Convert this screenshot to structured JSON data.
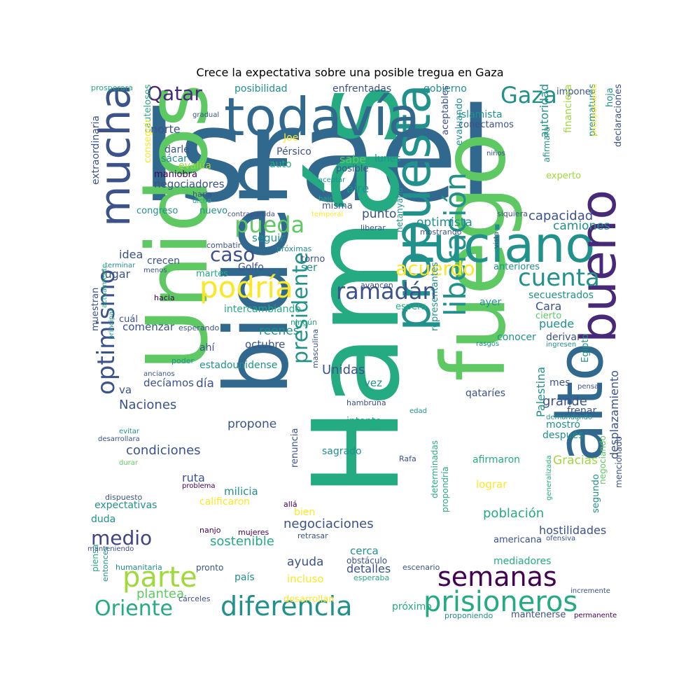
{
  "title": "Crece la expectativa sobre una posible tregua en Gaza",
  "colors": {
    "darkblue": "#3b528b",
    "blue": "#31688e",
    "teal": "#21918c",
    "seagreen": "#25ab82",
    "green": "#5ec962",
    "lime": "#9fda3a",
    "yellow": "#fde725",
    "purple": "#482878",
    "darkpurple": "#440154",
    "slate": "#414487"
  },
  "words": [
    {
      "t": "Israel",
      "c": "blue"
    },
    {
      "t": "Hamás",
      "c": "seagreen"
    },
    {
      "t": "Unidos",
      "c": "green"
    },
    {
      "t": "biden",
      "c": "blue"
    },
    {
      "t": "fuego",
      "c": "green"
    },
    {
      "t": "propuesta",
      "c": "teal"
    },
    {
      "t": "todavía",
      "c": "blue"
    },
    {
      "t": "Luciano",
      "c": "teal"
    },
    {
      "t": "alto",
      "c": "blue"
    },
    {
      "t": "bueno",
      "c": "purple"
    },
    {
      "t": "mucha",
      "c": "darkblue"
    },
    {
      "t": "liberación",
      "c": "teal"
    },
    {
      "t": "podría",
      "c": "yellow"
    },
    {
      "t": "prisioneros",
      "c": "seagreen"
    },
    {
      "t": "semanas",
      "c": "darkpurple"
    },
    {
      "t": "diferencia",
      "c": "teal"
    },
    {
      "t": "parte",
      "c": "lime"
    },
    {
      "t": "Oriente",
      "c": "seagreen"
    },
    {
      "t": "medio",
      "c": "slate"
    },
    {
      "t": "optimismo",
      "c": "darkblue"
    },
    {
      "t": "presidente",
      "c": "teal"
    },
    {
      "t": "ramadán",
      "c": "darkblue"
    },
    {
      "t": "cuenta",
      "c": "teal"
    },
    {
      "t": "acuerdo",
      "c": "yellow"
    },
    {
      "t": "pueda",
      "c": "green"
    },
    {
      "t": "caso",
      "c": "darkblue"
    },
    {
      "t": "Gaza",
      "c": "teal"
    },
    {
      "t": "Qatar",
      "c": "purple"
    },
    {
      "t": "Naciones",
      "c": "darkblue"
    },
    {
      "t": "Unidas",
      "c": "darkblue"
    },
    {
      "t": "condiciones",
      "c": "darkblue"
    },
    {
      "t": "plantea",
      "c": "green"
    },
    {
      "t": "negociaciones",
      "c": "darkblue"
    },
    {
      "t": "sostenible",
      "c": "seagreen"
    },
    {
      "t": "población",
      "c": "seagreen"
    },
    {
      "t": "hostilidades",
      "c": "darkblue"
    },
    {
      "t": "desplazamiento",
      "c": "darkblue"
    },
    {
      "t": "Palestina",
      "c": "teal"
    },
    {
      "t": "capacidad",
      "c": "darkblue"
    },
    {
      "t": "camiones",
      "c": "teal"
    },
    {
      "t": "optimista",
      "c": "teal"
    },
    {
      "t": "autoridad",
      "c": "teal"
    },
    {
      "t": "grande",
      "c": "darkblue"
    },
    {
      "t": "Gracias",
      "c": "lime"
    },
    {
      "t": "mediadores",
      "c": "seagreen"
    },
    {
      "t": "expectativas",
      "c": "teal"
    },
    {
      "t": "ruta",
      "c": "darkblue"
    },
    {
      "t": "milicia",
      "c": "teal"
    },
    {
      "t": "ayuda",
      "c": "darkblue"
    },
    {
      "t": "detalles",
      "c": "darkblue"
    },
    {
      "t": "incluso",
      "c": "yellow"
    },
    {
      "t": "cerca",
      "c": "teal"
    },
    {
      "t": "propone",
      "c": "darkblue"
    },
    {
      "t": "intento",
      "c": "seagreen"
    },
    {
      "t": "sagrado",
      "c": "teal"
    },
    {
      "t": "reenes",
      "c": "teal"
    },
    {
      "t": "octubre",
      "c": "darkblue"
    },
    {
      "t": "estadounidense",
      "c": "teal"
    },
    {
      "t": "intercambiando",
      "c": "seagreen"
    },
    {
      "t": "comenzar",
      "c": "darkblue"
    },
    {
      "t": "secuestrados",
      "c": "teal"
    },
    {
      "t": "anteriores",
      "c": "teal"
    },
    {
      "t": "Cara",
      "c": "darkblue"
    },
    {
      "t": "puede",
      "c": "teal"
    },
    {
      "t": "conocer",
      "c": "teal"
    },
    {
      "t": "derivar",
      "c": "darkblue"
    },
    {
      "t": "qataríes",
      "c": "darkblue"
    },
    {
      "t": "mes",
      "c": "darkblue"
    },
    {
      "t": "frenar",
      "c": "darkblue"
    },
    {
      "t": "mostró",
      "c": "teal"
    },
    {
      "t": "después",
      "c": "teal"
    },
    {
      "t": "afirmaron",
      "c": "seagreen"
    },
    {
      "t": "lograr",
      "c": "yellow"
    },
    {
      "t": "americana",
      "c": "darkblue"
    },
    {
      "t": "mantenerse",
      "c": "darkblue"
    },
    {
      "t": "próximo",
      "c": "seagreen"
    },
    {
      "t": "desarrollan",
      "c": "yellow"
    },
    {
      "t": "país",
      "c": "teal"
    },
    {
      "t": "bien",
      "c": "yellow"
    },
    {
      "t": "calificaron",
      "c": "yellow"
    },
    {
      "t": "duda",
      "c": "teal"
    },
    {
      "t": "idea",
      "c": "darkblue"
    },
    {
      "t": "lugar",
      "c": "darkblue"
    },
    {
      "t": "crecen",
      "c": "darkblue"
    },
    {
      "t": "martes",
      "c": "seagreen"
    },
    {
      "t": "Golfo",
      "c": "darkblue"
    },
    {
      "t": "ser",
      "c": "teal"
    },
    {
      "t": "torno",
      "c": "darkblue"
    },
    {
      "t": "seguir",
      "c": "teal"
    },
    {
      "t": "punto",
      "c": "darkblue"
    },
    {
      "t": "aire",
      "c": "teal"
    },
    {
      "t": "sabe",
      "c": "green"
    },
    {
      "t": "lunes",
      "c": "teal"
    },
    {
      "t": "posible",
      "c": "darkblue"
    },
    {
      "t": "misma",
      "c": "darkblue"
    },
    {
      "t": "Pérsico",
      "c": "darkblue"
    },
    {
      "t": "Joe",
      "c": "yellow"
    },
    {
      "t": "auto",
      "c": "seagreen"
    },
    {
      "t": "norte",
      "c": "darkblue"
    },
    {
      "t": "darle",
      "c": "darkblue"
    },
    {
      "t": "sácar",
      "c": "teal"
    },
    {
      "t": "evalúa",
      "c": "lime"
    },
    {
      "t": "maniobra",
      "c": "darkpurple"
    },
    {
      "t": "negociadores",
      "c": "darkblue"
    },
    {
      "t": "congreso",
      "c": "teal"
    },
    {
      "t": "nuevo",
      "c": "teal"
    },
    {
      "t": "posibilidad",
      "c": "teal"
    },
    {
      "t": "enfrentadas",
      "c": "darkblue"
    },
    {
      "t": "gobierno",
      "c": "teal"
    },
    {
      "t": "islamista",
      "c": "teal"
    },
    {
      "t": "conectamos",
      "c": "darkblue"
    },
    {
      "t": "imponer",
      "c": "darkblue"
    },
    {
      "t": "hoja",
      "c": "teal"
    },
    {
      "t": "declaraciones",
      "c": "darkblue"
    },
    {
      "t": "experto",
      "c": "lime"
    },
    {
      "t": "financiera",
      "c": "lime"
    },
    {
      "t": "afirmara",
      "c": "teal"
    },
    {
      "t": "prematuras",
      "c": "teal"
    },
    {
      "t": "evaluando",
      "c": "teal"
    },
    {
      "t": "aceptables",
      "c": "darkblue"
    },
    {
      "t": "niños",
      "c": "darkblue"
    },
    {
      "t": "principalmente",
      "c": "yellow"
    },
    {
      "t": "extraordinaria",
      "c": "darkblue"
    },
    {
      "t": "muestran",
      "c": "darkblue"
    },
    {
      "t": "actualmente",
      "c": "seagreen"
    },
    {
      "t": "principal",
      "c": "teal"
    },
    {
      "t": "cuál",
      "c": "darkblue"
    },
    {
      "t": "va",
      "c": "darkblue"
    },
    {
      "t": "decíamos",
      "c": "darkblue"
    },
    {
      "t": "día",
      "c": "darkblue"
    },
    {
      "t": "ahí",
      "c": "darkblue"
    },
    {
      "t": "vez",
      "c": "teal"
    },
    {
      "t": "espera",
      "c": "seagreen"
    },
    {
      "t": "ayer",
      "c": "teal"
    },
    {
      "t": "cierto",
      "c": "green"
    },
    {
      "t": "Egipto",
      "c": "teal"
    },
    {
      "t": "representantes",
      "c": "teal"
    },
    {
      "t": "renuncia",
      "c": "darkblue"
    },
    {
      "t": "netanyahu",
      "c": "teal"
    },
    {
      "t": "segundo",
      "c": "teal"
    },
    {
      "t": "negociando",
      "c": "green"
    },
    {
      "t": "mencionado",
      "c": "darkblue"
    },
    {
      "t": "determinadas",
      "c": "seagreen"
    },
    {
      "t": "propondría",
      "c": "seagreen"
    },
    {
      "t": "pronto",
      "c": "darkblue"
    },
    {
      "t": "humanitaria",
      "c": "teal"
    },
    {
      "t": "piensa",
      "c": "seagreen"
    },
    {
      "t": "entonces",
      "c": "teal"
    },
    {
      "t": "cárceles",
      "c": "darkblue"
    },
    {
      "t": "mujeres",
      "c": "darkpurple"
    },
    {
      "t": "allá",
      "c": "darkpurple"
    },
    {
      "t": "nanjo",
      "c": "darkpurple"
    },
    {
      "t": "retrasar",
      "c": "darkblue"
    },
    {
      "t": "obstáculo",
      "c": "darkblue"
    },
    {
      "t": "escenario",
      "c": "darkblue"
    },
    {
      "t": "esperaba",
      "c": "seagreen"
    },
    {
      "t": "incremente",
      "c": "darkblue"
    },
    {
      "t": "proponiendo",
      "c": "teal"
    },
    {
      "t": "permanente",
      "c": "darkpurple"
    },
    {
      "t": "ofensiva",
      "c": "darkblue"
    },
    {
      "t": "generalizada",
      "c": "seagreen"
    },
    {
      "t": "problema",
      "c": "darkpurple"
    },
    {
      "t": "dispuesto",
      "c": "darkblue"
    },
    {
      "t": "desarrollara",
      "c": "darkblue"
    },
    {
      "t": "evitar",
      "c": "teal"
    },
    {
      "t": "durar",
      "c": "green"
    },
    {
      "t": "manteniendo",
      "c": "darkblue"
    },
    {
      "t": "hambruna",
      "c": "darkblue"
    },
    {
      "t": "cambio",
      "c": "seagreen"
    },
    {
      "t": "edad",
      "c": "teal"
    },
    {
      "t": "Rafa",
      "c": "darkblue"
    },
    {
      "t": "masculina",
      "c": "darkblue"
    },
    {
      "t": "ningún",
      "c": "seagreen"
    },
    {
      "t": "poder",
      "c": "teal"
    },
    {
      "t": "ancianos",
      "c": "darkblue"
    },
    {
      "t": "hacia",
      "c": "darkpurple"
    },
    {
      "t": "esperando",
      "c": "darkblue"
    },
    {
      "t": "rasgos",
      "c": "teal"
    },
    {
      "t": "ingresen",
      "c": "teal"
    },
    {
      "t": "pensar",
      "c": "darkblue"
    },
    {
      "t": "demandando",
      "c": "teal"
    },
    {
      "t": "avancen",
      "c": "darkblue"
    },
    {
      "t": "terminar",
      "c": "teal"
    },
    {
      "t": "menos",
      "c": "darkblue"
    },
    {
      "t": "combatir",
      "c": "darkblue"
    },
    {
      "t": "próximas",
      "c": "teal"
    },
    {
      "t": "liberar",
      "c": "darkblue"
    },
    {
      "t": "vista",
      "c": "darkblue"
    },
    {
      "t": "mostrando",
      "c": "darkblue"
    },
    {
      "t": "siquiera",
      "c": "darkblue"
    },
    {
      "t": "contrapartida",
      "c": "darkblue"
    },
    {
      "t": "temporal",
      "c": "yellow"
    },
    {
      "t": "bajo",
      "c": "seagreen"
    },
    {
      "t": "aceptar",
      "c": "teal"
    },
    {
      "t": "haría",
      "c": "darkblue"
    },
    {
      "t": "dicho",
      "c": "seagreen"
    },
    {
      "t": "gradual",
      "c": "darkblue"
    },
    {
      "t": "prosperara",
      "c": "seagreen"
    },
    {
      "t": "cautelosos",
      "c": "seagreen"
    },
    {
      "t": "conseguir",
      "c": "yellow"
    }
  ]
}
